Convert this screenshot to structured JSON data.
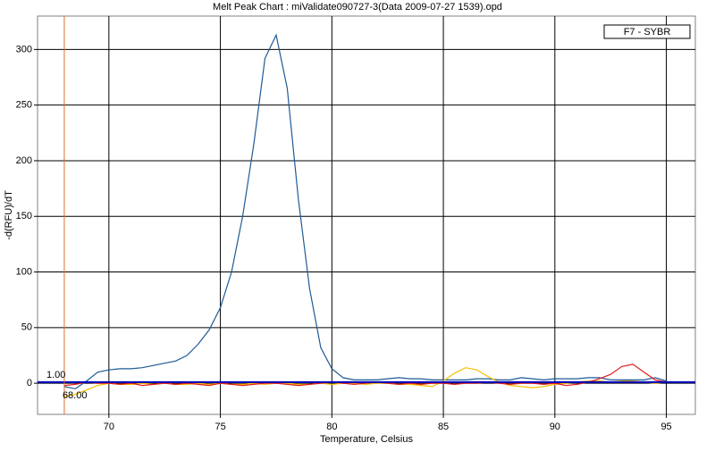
{
  "chart_data": {
    "type": "line",
    "title": "Melt Peak Chart : miValidate090727-3(Data 2009-07-27 1539).opd",
    "x_label": "Temperature, Celsius",
    "y_label": "-d(RFU)/dT",
    "legend": "F7 - SYBR",
    "x": [
      68,
      68.5,
      69,
      69.5,
      70,
      70.5,
      71,
      71.5,
      72,
      72.5,
      73,
      73.5,
      74,
      74.5,
      75,
      75.5,
      76,
      76.5,
      77,
      77.5,
      78,
      78.5,
      79,
      79.5,
      80,
      80.5,
      81,
      81.5,
      82,
      82.5,
      83,
      83.5,
      84,
      84.5,
      85,
      85.5,
      86,
      86.5,
      87,
      87.5,
      88,
      88.5,
      89,
      89.5,
      90,
      90.5,
      91,
      91.5,
      92,
      92.5,
      93,
      93.5,
      94,
      94.5,
      95
    ],
    "series": [
      {
        "color": "#1f5a96",
        "values": [
          -3,
          -5,
          2,
          10,
          12,
          13,
          13,
          14,
          16,
          18,
          20,
          25,
          35,
          48,
          68,
          100,
          150,
          215,
          292,
          313,
          265,
          165,
          85,
          32,
          13,
          5,
          3,
          3,
          3,
          4,
          5,
          4,
          4,
          3,
          3,
          3,
          3,
          4,
          4,
          3,
          3,
          5,
          4,
          3,
          4,
          4,
          4,
          5,
          5,
          3,
          3,
          3,
          3,
          5,
          2
        ]
      },
      {
        "color": "#f5c000",
        "values": [
          -12,
          -10,
          -6,
          -2,
          0,
          -1,
          -1,
          0,
          -1,
          0,
          -1,
          -1,
          0,
          -1,
          0,
          -1,
          -1,
          0,
          -1,
          0,
          0,
          -1,
          -1,
          0,
          -1,
          0,
          0,
          -1,
          0,
          0,
          -1,
          -1,
          -2,
          -3,
          2,
          9,
          14,
          12,
          6,
          1,
          -2,
          -3,
          -4,
          -3,
          -1,
          0,
          1,
          2,
          2,
          1,
          2,
          2,
          1,
          0,
          1
        ]
      },
      {
        "color": "#e0201c",
        "values": [
          -2,
          -1,
          1,
          0,
          0,
          -1,
          0,
          -2,
          -1,
          0,
          -1,
          0,
          -1,
          -2,
          0,
          -1,
          -2,
          -1,
          0,
          0,
          -1,
          -2,
          -1,
          0,
          1,
          0,
          -1,
          0,
          1,
          0,
          -1,
          0,
          -1,
          0,
          0,
          -1,
          0,
          0,
          1,
          0,
          -1,
          0,
          0,
          -1,
          0,
          -2,
          -1,
          1,
          4,
          8,
          15,
          17,
          10,
          3,
          1
        ]
      }
    ],
    "threshold": {
      "x": {
        "value": 68,
        "label": "68.00"
      },
      "y": {
        "value": 1,
        "label": "1.00"
      },
      "x_color": "#e07030",
      "y_color": "#0000c0"
    },
    "xlim": [
      66.8,
      96.3
    ],
    "ylim": [
      -28,
      330
    ],
    "xticks": [
      70,
      75,
      80,
      85,
      90,
      95
    ],
    "yticks": [
      0,
      50,
      100,
      150,
      200,
      250,
      300
    ],
    "grid": true
  }
}
